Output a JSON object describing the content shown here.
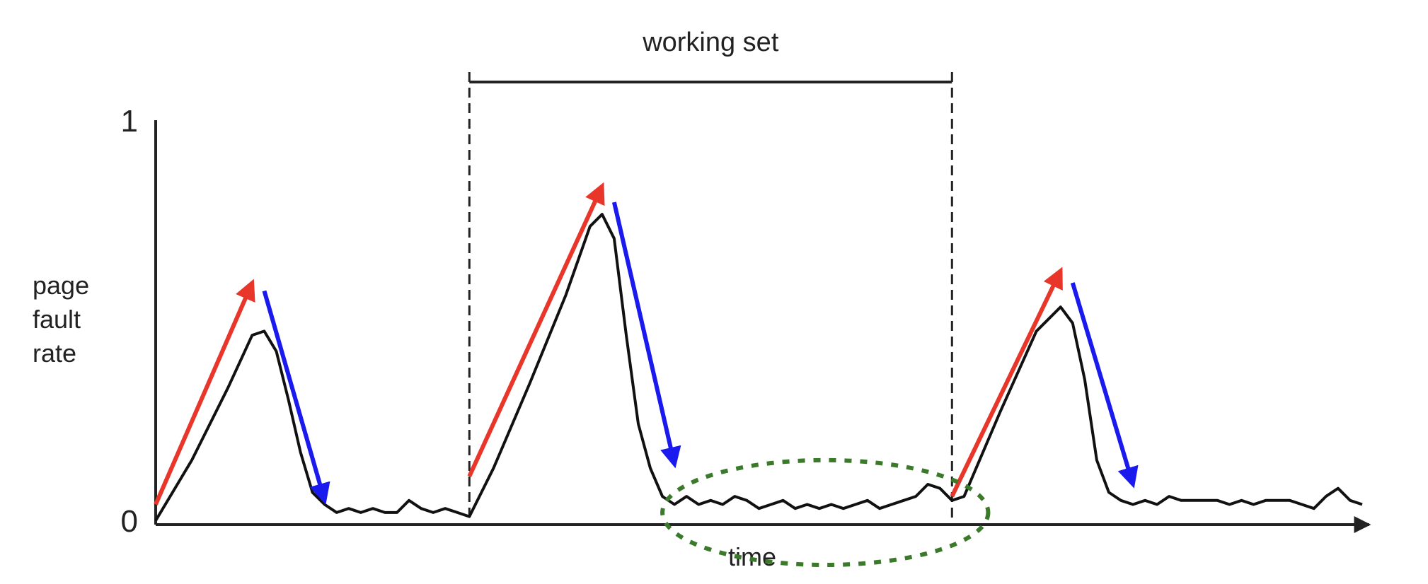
{
  "chart_data": {
    "type": "line",
    "title": "",
    "xlabel": "time",
    "ylabel": "page fault rate",
    "ylabel_lines": [
      "page",
      "fault",
      "rate"
    ],
    "ytick_labels": [
      "0",
      "1"
    ],
    "ylim": [
      0,
      1
    ],
    "xlim": [
      0,
      1
    ],
    "grid": false,
    "annotations": {
      "working_set_label": "working set",
      "working_set_span": [
        0.26,
        0.66
      ]
    },
    "series": [
      {
        "x": [
          0.0,
          0.03,
          0.06,
          0.08,
          0.09,
          0.1,
          0.11,
          0.12,
          0.13,
          0.14,
          0.15,
          0.16,
          0.17,
          0.18,
          0.19,
          0.2,
          0.21,
          0.22,
          0.23,
          0.24,
          0.25,
          0.26,
          0.28,
          0.31,
          0.34,
          0.36,
          0.37,
          0.38,
          0.39,
          0.4,
          0.41,
          0.42,
          0.43,
          0.44,
          0.45,
          0.46,
          0.47,
          0.48,
          0.49,
          0.5,
          0.51,
          0.52,
          0.53,
          0.54,
          0.55,
          0.56,
          0.57,
          0.58,
          0.59,
          0.6,
          0.61,
          0.62,
          0.63,
          0.64,
          0.65,
          0.66,
          0.67,
          0.7,
          0.73,
          0.75,
          0.76,
          0.77,
          0.78,
          0.79,
          0.8,
          0.81,
          0.82,
          0.83,
          0.84,
          0.85,
          0.86,
          0.87,
          0.88,
          0.89,
          0.9,
          0.91,
          0.92,
          0.93,
          0.94,
          0.95,
          0.96,
          0.97,
          0.98,
          0.99,
          1.0
        ],
        "y": [
          0.01,
          0.16,
          0.34,
          0.47,
          0.48,
          0.43,
          0.31,
          0.18,
          0.08,
          0.05,
          0.03,
          0.04,
          0.03,
          0.04,
          0.03,
          0.03,
          0.06,
          0.04,
          0.03,
          0.04,
          0.03,
          0.02,
          0.14,
          0.35,
          0.57,
          0.74,
          0.77,
          0.71,
          0.47,
          0.25,
          0.14,
          0.07,
          0.05,
          0.07,
          0.05,
          0.06,
          0.05,
          0.07,
          0.06,
          0.04,
          0.05,
          0.06,
          0.04,
          0.05,
          0.04,
          0.05,
          0.04,
          0.05,
          0.06,
          0.04,
          0.05,
          0.06,
          0.07,
          0.1,
          0.09,
          0.06,
          0.07,
          0.28,
          0.48,
          0.54,
          0.5,
          0.36,
          0.16,
          0.08,
          0.06,
          0.05,
          0.06,
          0.05,
          0.07,
          0.06,
          0.06,
          0.06,
          0.06,
          0.05,
          0.06,
          0.05,
          0.06,
          0.06,
          0.06,
          0.05,
          0.04,
          0.07,
          0.09,
          0.06,
          0.05
        ]
      }
    ],
    "arrows": [
      {
        "direction": "up",
        "color": "#e8372a",
        "from": [
          0.0,
          0.05
        ],
        "to": [
          0.08,
          0.6
        ]
      },
      {
        "direction": "down",
        "color": "#1a1aee",
        "from": [
          0.09,
          0.58
        ],
        "to": [
          0.14,
          0.06
        ]
      },
      {
        "direction": "up",
        "color": "#e8372a",
        "from": [
          0.26,
          0.12
        ],
        "to": [
          0.37,
          0.84
        ]
      },
      {
        "direction": "down",
        "color": "#1a1aee",
        "from": [
          0.38,
          0.8
        ],
        "to": [
          0.43,
          0.15
        ]
      },
      {
        "direction": "up",
        "color": "#e8372a",
        "from": [
          0.66,
          0.07
        ],
        "to": [
          0.75,
          0.63
        ]
      },
      {
        "direction": "down",
        "color": "#1a1aee",
        "from": [
          0.76,
          0.6
        ],
        "to": [
          0.81,
          0.1
        ]
      }
    ],
    "highlight": {
      "shape": "dotted-ellipse",
      "color": "#3a7a2a",
      "x_range": [
        0.42,
        0.69
      ],
      "y_range": [
        -0.1,
        0.16
      ]
    },
    "colors": {
      "axis": "#222222",
      "curve": "#111111"
    }
  }
}
